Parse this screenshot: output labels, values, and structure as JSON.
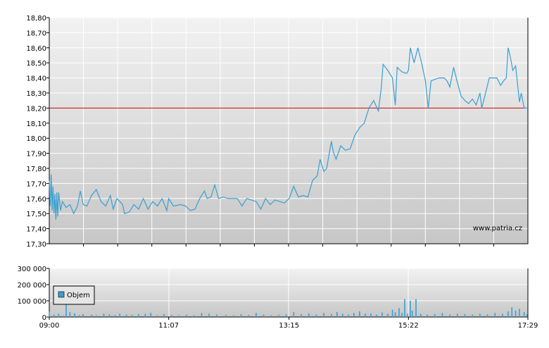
{
  "watermark": "www.patria.cz",
  "colors": {
    "price_line": "#3a9fd0",
    "reference_line": "#cc0000",
    "grid": "#ffffff",
    "plot_top": "#f0f0f0",
    "plot_bottom": "#c9c9c9",
    "volume_bar": "#3a9fd0",
    "axis": "#000000"
  },
  "chart_data": [
    {
      "type": "line",
      "series": [
        {
          "values": [
            [
              "09:00",
              17.72
            ],
            [
              "09:01",
              17.55
            ],
            [
              "09:02",
              17.76
            ],
            [
              "09:03",
              17.52
            ],
            [
              "09:04",
              17.68
            ],
            [
              "09:05",
              17.5
            ],
            [
              "09:06",
              17.63
            ],
            [
              "09:07",
              17.46
            ],
            [
              "09:08",
              17.64
            ],
            [
              "09:09",
              17.48
            ],
            [
              "09:10",
              17.64
            ],
            [
              "09:12",
              17.52
            ],
            [
              "09:14",
              17.58
            ],
            [
              "09:18",
              17.54
            ],
            [
              "09:22",
              17.56
            ],
            [
              "09:26",
              17.5
            ],
            [
              "09:30",
              17.55
            ],
            [
              "09:33",
              17.65
            ],
            [
              "09:36",
              17.56
            ],
            [
              "09:40",
              17.55
            ],
            [
              "09:45",
              17.62
            ],
            [
              "09:50",
              17.66
            ],
            [
              "09:55",
              17.58
            ],
            [
              "10:00",
              17.55
            ],
            [
              "10:05",
              17.62
            ],
            [
              "10:08",
              17.53
            ],
            [
              "10:12",
              17.6
            ],
            [
              "10:18",
              17.56
            ],
            [
              "10:20",
              17.5
            ],
            [
              "10:25",
              17.51
            ],
            [
              "10:30",
              17.56
            ],
            [
              "10:35",
              17.53
            ],
            [
              "10:40",
              17.6
            ],
            [
              "10:45",
              17.53
            ],
            [
              "10:50",
              17.58
            ],
            [
              "10:55",
              17.55
            ],
            [
              "11:00",
              17.6
            ],
            [
              "11:05",
              17.52
            ],
            [
              "11:07",
              17.6
            ],
            [
              "11:12",
              17.55
            ],
            [
              "11:20",
              17.56
            ],
            [
              "11:25",
              17.55
            ],
            [
              "11:30",
              17.52
            ],
            [
              "11:35",
              17.53
            ],
            [
              "11:40",
              17.6
            ],
            [
              "11:45",
              17.65
            ],
            [
              "11:48",
              17.6
            ],
            [
              "11:52",
              17.61
            ],
            [
              "11:56",
              17.69
            ],
            [
              "12:00",
              17.6
            ],
            [
              "12:05",
              17.61
            ],
            [
              "12:10",
              17.6
            ],
            [
              "12:20",
              17.6
            ],
            [
              "12:25",
              17.55
            ],
            [
              "12:30",
              17.6
            ],
            [
              "12:40",
              17.58
            ],
            [
              "12:45",
              17.53
            ],
            [
              "12:50",
              17.6
            ],
            [
              "12:55",
              17.56
            ],
            [
              "13:00",
              17.59
            ],
            [
              "13:05",
              17.58
            ],
            [
              "13:10",
              17.57
            ],
            [
              "13:15",
              17.6
            ],
            [
              "13:20",
              17.68
            ],
            [
              "13:25",
              17.61
            ],
            [
              "13:30",
              17.62
            ],
            [
              "13:35",
              17.61
            ],
            [
              "13:40",
              17.72
            ],
            [
              "13:45",
              17.75
            ],
            [
              "13:48",
              17.86
            ],
            [
              "13:52",
              17.78
            ],
            [
              "13:55",
              17.8
            ],
            [
              "14:00",
              17.98
            ],
            [
              "14:02",
              17.91
            ],
            [
              "14:05",
              17.86
            ],
            [
              "14:10",
              17.95
            ],
            [
              "14:15",
              17.92
            ],
            [
              "14:20",
              17.93
            ],
            [
              "14:25",
              18.02
            ],
            [
              "14:30",
              18.07
            ],
            [
              "14:35",
              18.1
            ],
            [
              "14:40",
              18.2
            ],
            [
              "14:45",
              18.25
            ],
            [
              "14:50",
              18.18
            ],
            [
              "14:53",
              18.33
            ],
            [
              "14:55",
              18.49
            ],
            [
              "15:00",
              18.45
            ],
            [
              "15:05",
              18.4
            ],
            [
              "15:08",
              18.22
            ],
            [
              "15:10",
              18.47
            ],
            [
              "15:15",
              18.44
            ],
            [
              "15:20",
              18.43
            ],
            [
              "15:22",
              18.45
            ],
            [
              "15:24",
              18.6
            ],
            [
              "15:28",
              18.5
            ],
            [
              "15:32",
              18.6
            ],
            [
              "15:36",
              18.5
            ],
            [
              "15:40",
              18.38
            ],
            [
              "15:43",
              18.2
            ],
            [
              "15:46",
              18.38
            ],
            [
              "15:50",
              18.39
            ],
            [
              "15:55",
              18.4
            ],
            [
              "16:00",
              18.4
            ],
            [
              "16:03",
              18.38
            ],
            [
              "16:06",
              18.34
            ],
            [
              "16:10",
              18.47
            ],
            [
              "16:14",
              18.37
            ],
            [
              "16:18",
              18.28
            ],
            [
              "16:22",
              18.25
            ],
            [
              "16:26",
              18.23
            ],
            [
              "16:30",
              18.26
            ],
            [
              "16:34",
              18.22
            ],
            [
              "16:38",
              18.3
            ],
            [
              "16:40",
              18.2
            ],
            [
              "16:44",
              18.3
            ],
            [
              "16:48",
              18.4
            ],
            [
              "16:52",
              18.4
            ],
            [
              "16:56",
              18.4
            ],
            [
              "17:00",
              18.35
            ],
            [
              "17:03",
              18.38
            ],
            [
              "17:06",
              18.4
            ],
            [
              "17:08",
              18.6
            ],
            [
              "17:10",
              18.55
            ],
            [
              "17:13",
              18.45
            ],
            [
              "17:16",
              18.48
            ],
            [
              "17:20",
              18.24
            ],
            [
              "17:22",
              18.3
            ],
            [
              "17:25",
              18.2
            ],
            [
              "17:29",
              18.2
            ]
          ]
        }
      ],
      "reference_line": 18.2,
      "ylim": [
        17.3,
        18.8
      ],
      "y_ticks": [
        "17,30",
        "17,40",
        "17,50",
        "17,60",
        "17,70",
        "17,80",
        "17,90",
        "18,00",
        "18,10",
        "18,20",
        "18,30",
        "18,40",
        "18,50",
        "18,60",
        "18,70",
        "18,80"
      ],
      "x_ticks": [
        "09:00",
        "11:07",
        "13:15",
        "15:22",
        "17:29"
      ],
      "grid": true
    },
    {
      "type": "bar",
      "series": [
        {
          "name": "Objem",
          "values": [
            [
              "09:00",
              35000
            ],
            [
              "09:05",
              15000
            ],
            [
              "09:10",
              20000
            ],
            [
              "09:15",
              8000
            ],
            [
              "09:18",
              90000
            ],
            [
              "09:22",
              30000
            ],
            [
              "09:27",
              22000
            ],
            [
              "09:32",
              12000
            ],
            [
              "09:36",
              18000
            ],
            [
              "09:45",
              14000
            ],
            [
              "09:50",
              10000
            ],
            [
              "09:58",
              20000
            ],
            [
              "10:04",
              16000
            ],
            [
              "10:10",
              12000
            ],
            [
              "10:15",
              20000
            ],
            [
              "10:22",
              15000
            ],
            [
              "10:28",
              12000
            ],
            [
              "10:35",
              18000
            ],
            [
              "10:42",
              20000
            ],
            [
              "10:48",
              25000
            ],
            [
              "10:55",
              10000
            ],
            [
              "11:02",
              18000
            ],
            [
              "11:10",
              12000
            ],
            [
              "11:18",
              10000
            ],
            [
              "11:26",
              14000
            ],
            [
              "11:34",
              10000
            ],
            [
              "11:42",
              25000
            ],
            [
              "11:50",
              20000
            ],
            [
              "11:58",
              15000
            ],
            [
              "12:08",
              12000
            ],
            [
              "12:16",
              10000
            ],
            [
              "12:24",
              18000
            ],
            [
              "12:32",
              12000
            ],
            [
              "12:40",
              25000
            ],
            [
              "12:48",
              15000
            ],
            [
              "12:56",
              10000
            ],
            [
              "13:04",
              12000
            ],
            [
              "13:12",
              15000
            ],
            [
              "13:20",
              30000
            ],
            [
              "13:28",
              18000
            ],
            [
              "13:36",
              22000
            ],
            [
              "13:44",
              15000
            ],
            [
              "13:52",
              25000
            ],
            [
              "14:00",
              18000
            ],
            [
              "14:06",
              30000
            ],
            [
              "14:12",
              20000
            ],
            [
              "14:18",
              15000
            ],
            [
              "14:24",
              25000
            ],
            [
              "14:30",
              35000
            ],
            [
              "14:36",
              20000
            ],
            [
              "14:42",
              22000
            ],
            [
              "14:48",
              15000
            ],
            [
              "14:54",
              28000
            ],
            [
              "15:00",
              20000
            ],
            [
              "15:05",
              45000
            ],
            [
              "15:08",
              30000
            ],
            [
              "15:12",
              55000
            ],
            [
              "15:15",
              25000
            ],
            [
              "15:18",
              110000
            ],
            [
              "15:21",
              20000
            ],
            [
              "15:24",
              100000
            ],
            [
              "15:26",
              40000
            ],
            [
              "15:30",
              110000
            ],
            [
              "15:35",
              20000
            ],
            [
              "15:42",
              15000
            ],
            [
              "15:50",
              18000
            ],
            [
              "15:58",
              25000
            ],
            [
              "16:06",
              15000
            ],
            [
              "16:14",
              20000
            ],
            [
              "16:22",
              18000
            ],
            [
              "16:30",
              15000
            ],
            [
              "16:38",
              20000
            ],
            [
              "16:46",
              15000
            ],
            [
              "16:54",
              25000
            ],
            [
              "17:02",
              20000
            ],
            [
              "17:08",
              35000
            ],
            [
              "17:12",
              60000
            ],
            [
              "17:16",
              40000
            ],
            [
              "17:20",
              50000
            ],
            [
              "17:25",
              30000
            ],
            [
              "17:28",
              15000
            ]
          ]
        }
      ],
      "ylim": [
        0,
        300000
      ],
      "y_ticks": [
        "0",
        "100 000",
        "200 000",
        "300 000"
      ],
      "x_ticks": [
        "09:00",
        "11:07",
        "13:15",
        "15:22",
        "17:29"
      ],
      "legend": "top-left",
      "grid": true
    }
  ]
}
